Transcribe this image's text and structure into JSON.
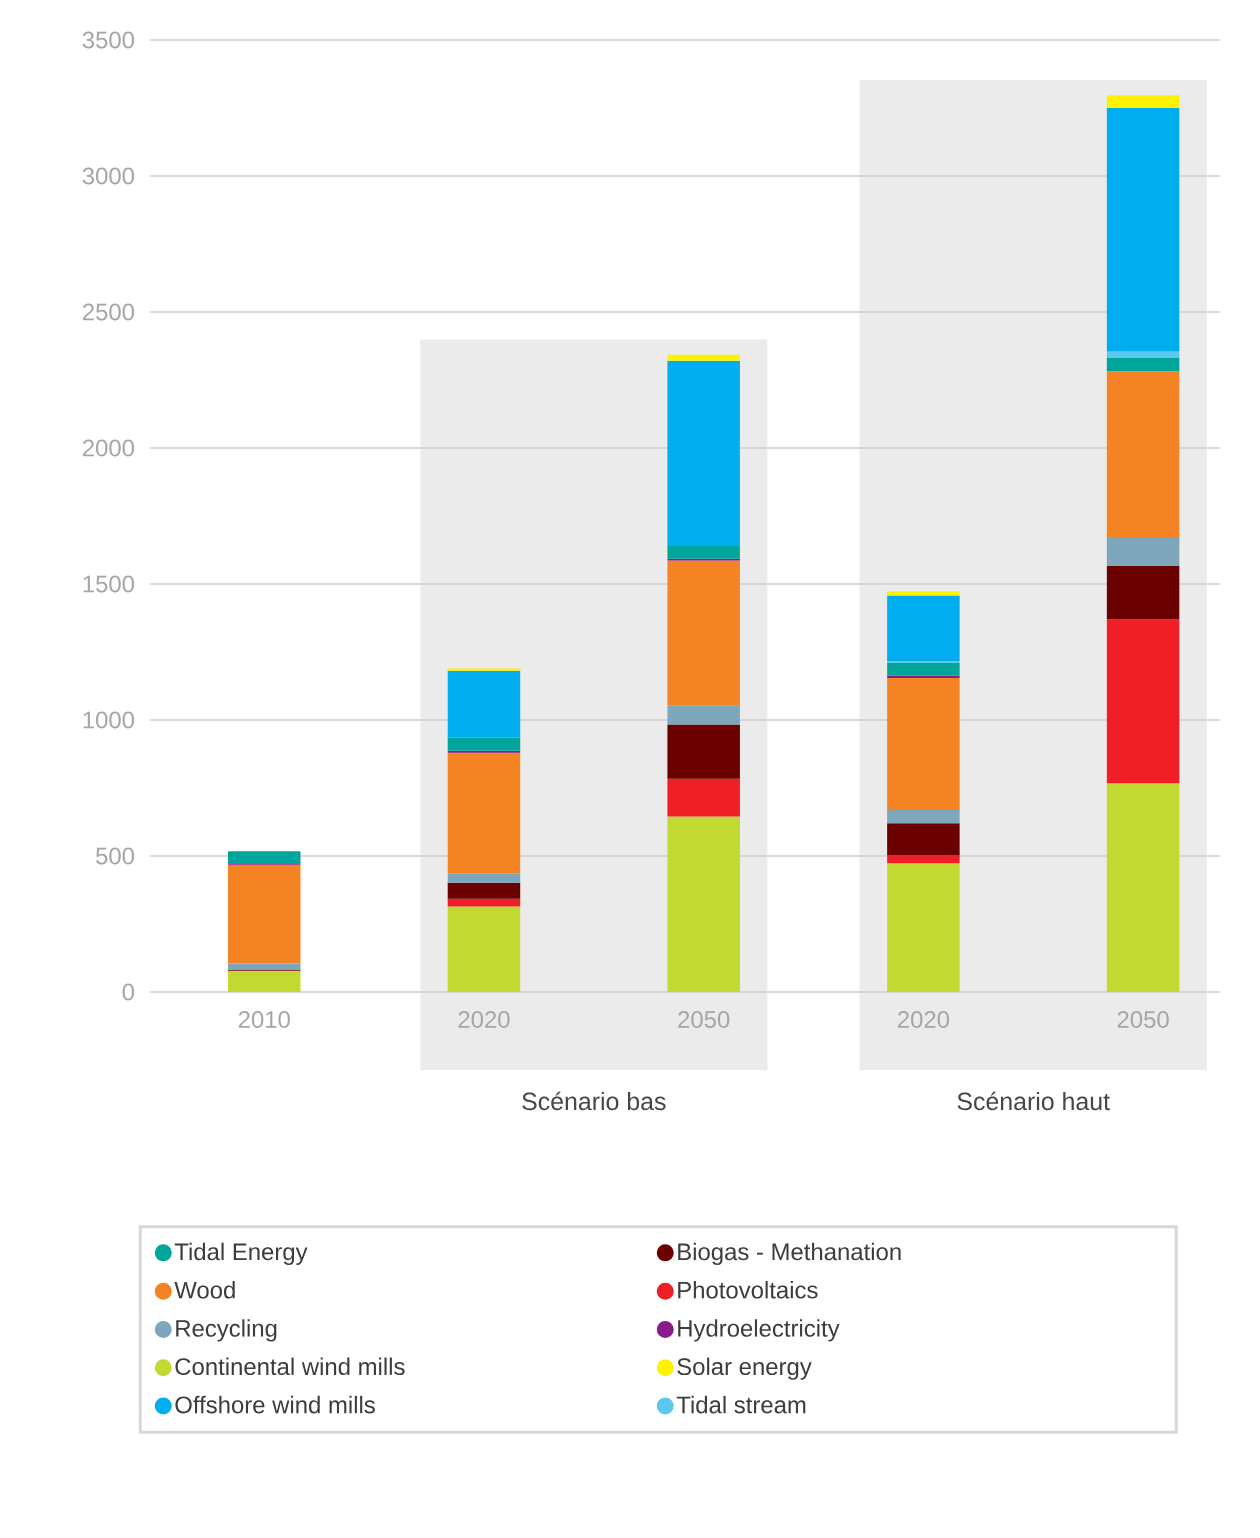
{
  "chart_data": {
    "type": "bar",
    "stacked": true,
    "categories": [
      "2010",
      "2020",
      "2050",
      "2020",
      "2050"
    ],
    "ylim": [
      0,
      3500
    ],
    "yticks": [
      0,
      500,
      1000,
      1500,
      2000,
      2500,
      3000,
      3500
    ],
    "grid": "y",
    "legend": "bottom",
    "annotations": [
      "Scénario bas",
      "Scénario haut"
    ],
    "series": [
      {
        "name": "Continental wind mills",
        "color": "#c2d932",
        "values": [
          78,
          314,
          645,
          473,
          767
        ]
      },
      {
        "name": "Photovoltaics",
        "color": "#ee1f27",
        "values": [
          null,
          29,
          139,
          29,
          603
        ]
      },
      {
        "name": "Biogas - Methanation",
        "color": "#6b0000",
        "values": [
          5,
          59,
          199,
          118,
          196
        ]
      },
      {
        "name": "Recycling",
        "color": "#7fa7bb",
        "values": [
          22,
          34,
          71,
          49,
          103
        ]
      },
      {
        "name": "Wood",
        "color": "#f48423",
        "values": [
          363,
          444,
          532,
          485,
          613
        ]
      },
      {
        "name": "Hydroelectricity",
        "color": "#8b1a8b",
        "values": [
          5,
          7,
          7,
          10,
          null
        ]
      },
      {
        "name": "Tidal Energy",
        "color": "#00a69c",
        "values": [
          44,
          49,
          47,
          47,
          51
        ]
      },
      {
        "name": "Tidal stream",
        "color": "#5bc8f0",
        "values": [
          null,
          null,
          null,
          5,
          22
        ]
      },
      {
        "name": "Offshore wind mills",
        "color": "#00adee",
        "values": [
          null,
          245,
          681,
          242,
          895
        ]
      },
      {
        "name": "Solar energy",
        "color": "#fff200",
        "values": [
          null,
          8,
          22,
          15,
          47
        ]
      }
    ]
  }
}
